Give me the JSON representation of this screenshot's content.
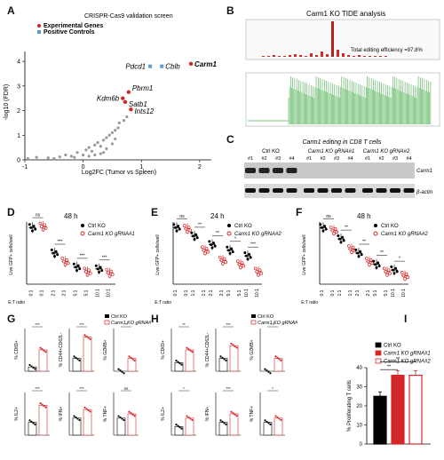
{
  "panel_letters": [
    "A",
    "B",
    "C",
    "D",
    "E",
    "F",
    "G",
    "H",
    "I"
  ],
  "chart_data": [
    {
      "panel": "A",
      "type": "scatter",
      "title": "CRISPR-Cas9 validation screen",
      "xlabel": "Log2FC (Tumor vs Spleen)",
      "ylabel": "-log10 (FDR)",
      "xlim": [
        -1,
        2.2
      ],
      "ylim": [
        0,
        4.4
      ],
      "xticks": [
        "-1",
        "0",
        "1",
        "2"
      ],
      "yticks": [
        "0",
        "1",
        "2",
        "3",
        "4"
      ],
      "legend": [
        {
          "name": "Experimental Genes",
          "color": "#d62728"
        },
        {
          "name": "Positive Controls",
          "color": "#5b9bd5"
        }
      ],
      "labeled_points": [
        {
          "label": "Carm1",
          "x": 1.85,
          "y": 3.9,
          "group": "Experimental Genes"
        },
        {
          "label": "Cblb",
          "x": 1.35,
          "y": 3.8,
          "group": "Positive Controls"
        },
        {
          "label": "Pdcd1",
          "x": 1.15,
          "y": 3.8,
          "group": "Positive Controls"
        },
        {
          "label": "Pbrm1",
          "x": 0.78,
          "y": 2.75,
          "group": "Experimental Genes"
        },
        {
          "label": "Kdm6b",
          "x": 0.68,
          "y": 2.5,
          "group": "Experimental Genes"
        },
        {
          "label": "Satb1",
          "x": 0.72,
          "y": 2.35,
          "group": "Experimental Genes"
        },
        {
          "label": "Ints12",
          "x": 0.82,
          "y": 2.05,
          "group": "Experimental Genes"
        }
      ],
      "background_points": [
        [
          -0.95,
          0.05
        ],
        [
          -0.8,
          0.1
        ],
        [
          -0.6,
          0.08
        ],
        [
          -0.4,
          0.12
        ],
        [
          -0.3,
          0.2
        ],
        [
          -0.2,
          0.15
        ],
        [
          -0.1,
          0.3
        ],
        [
          0.0,
          0.2
        ],
        [
          0.05,
          0.4
        ],
        [
          0.1,
          0.5
        ],
        [
          0.15,
          0.35
        ],
        [
          0.2,
          0.6
        ],
        [
          0.25,
          0.7
        ],
        [
          0.3,
          0.55
        ],
        [
          0.35,
          0.8
        ],
        [
          0.4,
          0.9
        ],
        [
          0.45,
          1.0
        ],
        [
          0.5,
          1.1
        ],
        [
          0.55,
          1.2
        ],
        [
          0.6,
          1.3
        ],
        [
          0.62,
          1.5
        ],
        [
          0.4,
          0.45
        ],
        [
          0.3,
          0.25
        ],
        [
          0.5,
          0.65
        ],
        [
          -0.5,
          0.05
        ],
        [
          -0.15,
          0.1
        ],
        [
          0.1,
          0.15
        ],
        [
          0.2,
          0.2
        ],
        [
          0.55,
          0.85
        ],
        [
          0.7,
          1.6
        ],
        [
          0.75,
          1.75
        ],
        [
          0.35,
          0.3
        ]
      ]
    },
    {
      "panel": "B",
      "type": "bar",
      "title": "Carm1 KO TIDE analysis",
      "annotation": "Total editing efficiency =97.8%"
    },
    {
      "panel": "C",
      "type": "table",
      "title": "Carm1 editing in CD8 T cells",
      "groups": [
        "Ctrl KO",
        "Carm1 KO gRNA#1",
        "Carm1 KO gRNA#2"
      ],
      "lanes": [
        "#1",
        "#2",
        "#3",
        "#4",
        "#1",
        "#2",
        "#3",
        "#4",
        "#1",
        "#2",
        "#3",
        "#4"
      ],
      "rows": [
        "Carm1",
        "β-actin"
      ]
    },
    {
      "panel": "D",
      "type": "scatter",
      "title": "48 h",
      "ylabel": "Live GFP+ cells/well",
      "xlabel": "E:T ratio",
      "categories": [
        "0:1",
        "2:1",
        "5:1",
        "10:1"
      ],
      "legend": [
        "Ctrl KO",
        "Carm1 KO gRNA#1"
      ],
      "series": [
        {
          "name": "Ctrl KO",
          "values": [
            100,
            55,
            30,
            27
          ]
        },
        {
          "name": "Carm1 KO gRNA#1",
          "values": [
            102,
            40,
            22,
            20
          ]
        }
      ],
      "significance": [
        "ns",
        "***",
        "***",
        "***"
      ]
    },
    {
      "panel": "E",
      "type": "scatter",
      "title": "24 h",
      "ylabel": "Live GFP+ cells/well",
      "xlabel": "E:T ratio",
      "categories": [
        "0:1",
        "1:1",
        "2:1",
        "5:1",
        "10:1"
      ],
      "legend": [
        "Ctrl KO",
        "Carm1 KO gRNA#2"
      ],
      "series": [
        {
          "name": "Ctrl KO",
          "values": [
            100,
            85,
            70,
            60,
            50
          ]
        },
        {
          "name": "Carm1 KO gRNA#2",
          "values": [
            98,
            60,
            42,
            35,
            22
          ]
        }
      ],
      "significance": [
        "ns",
        "**",
        "**",
        "*",
        "***"
      ]
    },
    {
      "panel": "F",
      "type": "scatter",
      "title": "48 h",
      "ylabel": "Live GFP+ cells/well",
      "xlabel": "E:T ratio",
      "categories": [
        "0:1",
        "1:1",
        "2:1",
        "5:1",
        "10:1"
      ],
      "legend": [
        "Ctrl KO",
        "Carm1 KO gRNA#2"
      ],
      "series": [
        {
          "name": "Ctrl KO",
          "values": [
            100,
            80,
            55,
            35,
            25
          ]
        },
        {
          "name": "Carm1 KO gRNA#2",
          "values": [
            95,
            62,
            40,
            22,
            15
          ]
        }
      ],
      "significance": [
        "ns",
        "**",
        "**",
        "**",
        "*"
      ]
    },
    {
      "panel": "G",
      "type": "bar",
      "legend": [
        "Ctrl KO",
        "Carm1 KO gRNA#1"
      ],
      "subplots": [
        {
          "ylabel": "% CD69+",
          "values": [
            1,
            5
          ],
          "sig": "***"
        },
        {
          "ylabel": "% CD44+CD62L-",
          "values": [
            3,
            8
          ],
          "sig": "***"
        },
        {
          "ylabel": "% GZMB+",
          "values": [
            0,
            3
          ],
          "sig": "**"
        },
        {
          "ylabel": "% IL2+",
          "values": [
            3,
            7
          ],
          "sig": "***"
        },
        {
          "ylabel": "% IFN+",
          "values": [
            4,
            6
          ],
          "sig": "***"
        },
        {
          "ylabel": "% TNF+",
          "values": [
            4,
            5
          ],
          "sig": "ns"
        }
      ]
    },
    {
      "panel": "H",
      "type": "bar",
      "legend": [
        "Ctrl KO",
        "Carm1 KO gRNA#2"
      ],
      "subplots": [
        {
          "ylabel": "% CD69+",
          "values": [
            2,
            5
          ],
          "sig": "**"
        },
        {
          "ylabel": "% CD44+CD62L-",
          "values": [
            3,
            6
          ],
          "sig": "***"
        },
        {
          "ylabel": "% GZMB+",
          "values": [
            0,
            3
          ],
          "sig": "***"
        },
        {
          "ylabel": "% IL2+",
          "values": [
            2,
            4
          ],
          "sig": "*"
        },
        {
          "ylabel": "% IFN+",
          "values": [
            3,
            5
          ],
          "sig": "***"
        },
        {
          "ylabel": "% TNF+",
          "values": [
            3,
            4
          ],
          "sig": "*"
        }
      ]
    },
    {
      "panel": "I",
      "type": "bar",
      "ylabel": "% Proliferating T cells",
      "ylim": [
        0,
        40
      ],
      "yticks": [
        "0",
        "10",
        "20",
        "30",
        "40"
      ],
      "legend": [
        "Ctrl KO",
        "Carm1 KO gRNA#1",
        "Carm1 KO gRNA#2"
      ],
      "colors": [
        "#000000",
        "#d62728",
        "#ffffff"
      ],
      "values": [
        25,
        36,
        36
      ],
      "significance": [
        "**",
        "**"
      ]
    }
  ]
}
